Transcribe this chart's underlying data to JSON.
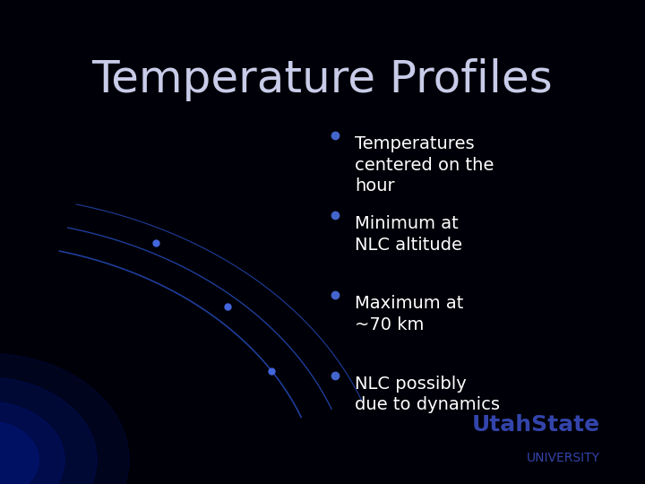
{
  "title": "Temperature Profiles",
  "title_color": "#c8cce8",
  "title_fontsize": 36,
  "background_color": "#000008",
  "bullet_points": [
    "Temperatures\ncentered on the\nhour",
    "Minimum at\nNLC altitude",
    "Maximum at\n~70 km",
    "NLC possibly\ndue to dynamics"
  ],
  "bullet_color": "#ffffff",
  "bullet_fontsize": 14,
  "bullet_marker_color": "#4466cc",
  "curve_color": "#2244aa",
  "logo_text1": "UtahState",
  "logo_text2": "UNIVERSITY",
  "logo_color": "#3344aa"
}
